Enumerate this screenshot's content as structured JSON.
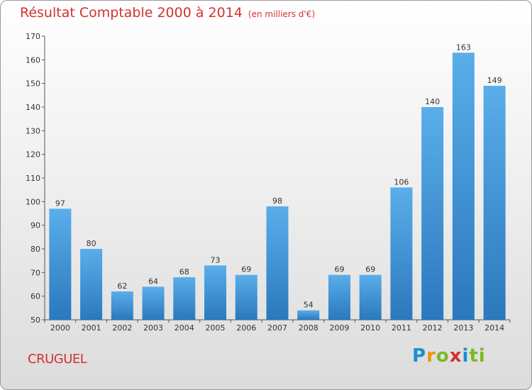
{
  "chart_data": {
    "type": "bar",
    "title": "Résultat Comptable 2000 à 2014",
    "subtitle": "(en milliers d'€)",
    "categories": [
      "2000",
      "2001",
      "2002",
      "2003",
      "2004",
      "2005",
      "2006",
      "2007",
      "2008",
      "2009",
      "2010",
      "2011",
      "2012",
      "2013",
      "2014"
    ],
    "values": [
      97,
      80,
      62,
      64,
      68,
      73,
      69,
      98,
      54,
      69,
      69,
      106,
      140,
      163,
      149
    ],
    "ylim": [
      50,
      170
    ],
    "yticks": [
      50,
      60,
      70,
      80,
      90,
      100,
      110,
      120,
      130,
      140,
      150,
      160,
      170
    ],
    "xlabel": "",
    "ylabel": "",
    "grid": false,
    "bar_color": "#3d94d6"
  },
  "commune": "CRUGUEL",
  "logo": [
    "P",
    "r",
    "o",
    "x",
    "i",
    "ti"
  ]
}
